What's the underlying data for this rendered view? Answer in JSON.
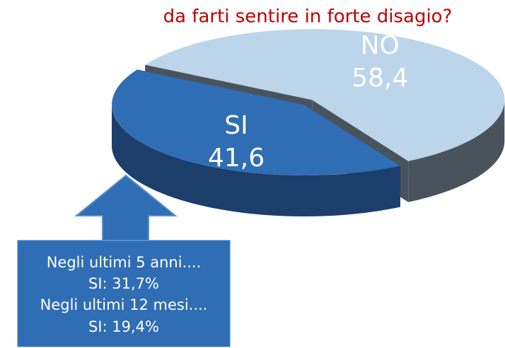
{
  "chart_data": {
    "type": "pie",
    "title": "da farti sentire in forte disagio?",
    "categories": [
      "SI",
      "NO"
    ],
    "values": [
      41.6,
      58.4
    ],
    "value_labels": [
      "41,6",
      "58,4"
    ],
    "colors": [
      "#2f6db4",
      "#bcd5ea"
    ],
    "side_colors": [
      "#1b3e6b",
      "#48535c"
    ],
    "annotations": [
      "Negli ultimi 5 anni....",
      "SI:  31,7%",
      "Negli ultimi 12 mesi....",
      "SI: 19,4%"
    ]
  }
}
